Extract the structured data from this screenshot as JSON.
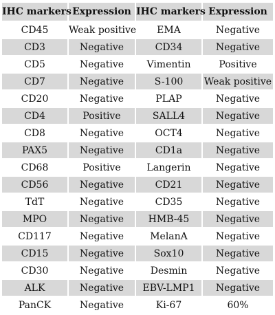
{
  "table": {
    "headers": [
      "IHC markers",
      "Expression",
      "IHC markers",
      "Expression"
    ],
    "rows": [
      [
        "CD45",
        "Weak positive",
        "EMA",
        "Negative"
      ],
      [
        "CD3",
        "Negative",
        "CD34",
        "Negative"
      ],
      [
        "CD5",
        "Negative",
        "Vimentin",
        "Positive"
      ],
      [
        "CD7",
        "Negative",
        "S-100",
        "Weak positive"
      ],
      [
        "CD20",
        "Negative",
        "PLAP",
        "Negative"
      ],
      [
        "CD4",
        "Positive",
        "SALL4",
        "Negative"
      ],
      [
        "CD8",
        "Negative",
        "OCT4",
        "Negative"
      ],
      [
        "PAX5",
        "Negative",
        "CD1a",
        "Negative"
      ],
      [
        "CD68",
        "Positive",
        "Langerin",
        "Negative"
      ],
      [
        "CD56",
        "Negative",
        "CD21",
        "Negative"
      ],
      [
        "TdT",
        "Negative",
        "CD35",
        "Negative"
      ],
      [
        "MPO",
        "Negative",
        "HMB-45",
        "Negative"
      ],
      [
        "CD117",
        "Negative",
        "MelanA",
        "Negative"
      ],
      [
        "CD15",
        "Negative",
        "Sox10",
        "Negative"
      ],
      [
        "CD30",
        "Negative",
        "Desmin",
        "Negative"
      ],
      [
        "ALK",
        "Negative",
        "EBV-LMP1",
        "Negative"
      ],
      [
        "PanCK",
        "Negative",
        "Ki-67",
        "60%"
      ]
    ]
  },
  "colors": {
    "shade": "#d8d8d8",
    "text": "#111111"
  }
}
